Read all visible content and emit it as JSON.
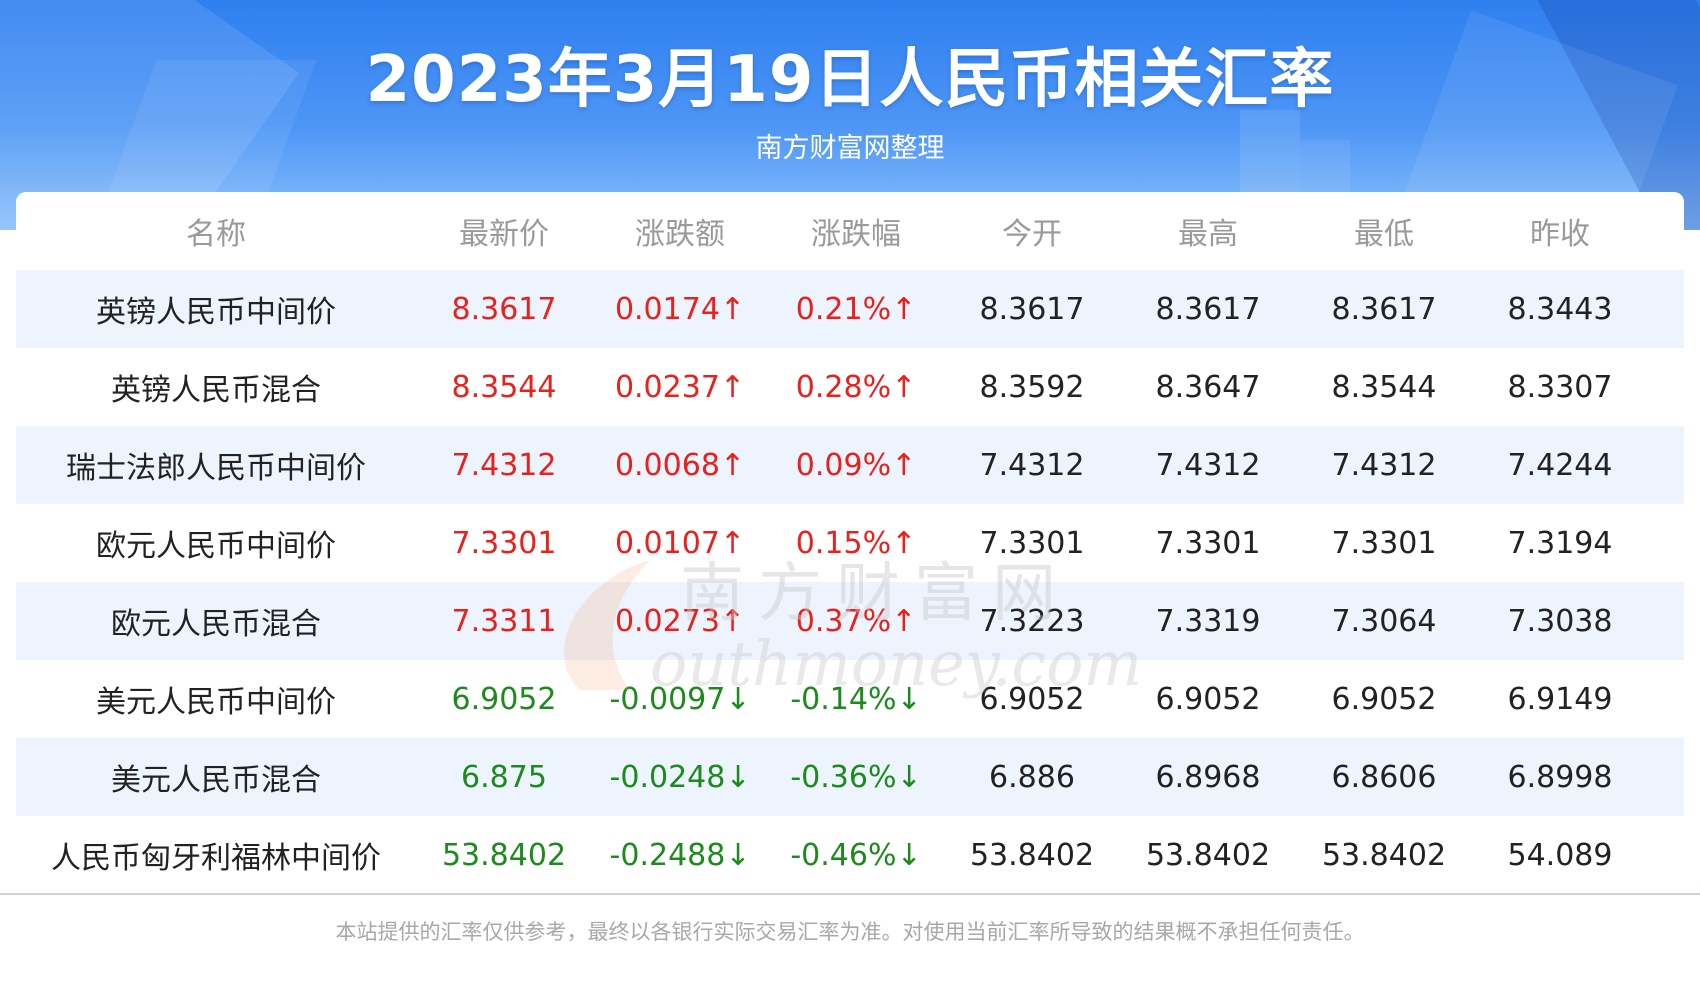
{
  "header": {
    "title": "2023年3月19日人民币相关汇率",
    "subtitle": "南方财富网整理"
  },
  "table": {
    "columns": [
      "名称",
      "最新价",
      "涨跌额",
      "涨跌幅",
      "今开",
      "最高",
      "最低",
      "昨收"
    ],
    "rows": [
      {
        "name": "英镑人民币中间价",
        "latest": "8.3617",
        "change": "0.0174↑",
        "change_pct": "0.21%↑",
        "open": "8.3617",
        "high": "8.3617",
        "low": "8.3617",
        "prev_close": "8.3443",
        "trend": "up"
      },
      {
        "name": "英镑人民币混合",
        "latest": "8.3544",
        "change": "0.0237↑",
        "change_pct": "0.28%↑",
        "open": "8.3592",
        "high": "8.3647",
        "low": "8.3544",
        "prev_close": "8.3307",
        "trend": "up"
      },
      {
        "name": "瑞士法郎人民币中间价",
        "latest": "7.4312",
        "change": "0.0068↑",
        "change_pct": "0.09%↑",
        "open": "7.4312",
        "high": "7.4312",
        "low": "7.4312",
        "prev_close": "7.4244",
        "trend": "up"
      },
      {
        "name": "欧元人民币中间价",
        "latest": "7.3301",
        "change": "0.0107↑",
        "change_pct": "0.15%↑",
        "open": "7.3301",
        "high": "7.3301",
        "low": "7.3301",
        "prev_close": "7.3194",
        "trend": "up"
      },
      {
        "name": "欧元人民币混合",
        "latest": "7.3311",
        "change": "0.0273↑",
        "change_pct": "0.37%↑",
        "open": "7.3223",
        "high": "7.3319",
        "low": "7.3064",
        "prev_close": "7.3038",
        "trend": "up"
      },
      {
        "name": "美元人民币中间价",
        "latest": "6.9052",
        "change": "-0.0097↓",
        "change_pct": "-0.14%↓",
        "open": "6.9052",
        "high": "6.9052",
        "low": "6.9052",
        "prev_close": "6.9149",
        "trend": "down"
      },
      {
        "name": "美元人民币混合",
        "latest": "6.875",
        "change": "-0.0248↓",
        "change_pct": "-0.36%↓",
        "open": "6.886",
        "high": "6.8968",
        "low": "6.8606",
        "prev_close": "6.8998",
        "trend": "down"
      },
      {
        "name": "人民币匈牙利福林中间价",
        "latest": "53.8402",
        "change": "-0.2488↓",
        "change_pct": "-0.46%↓",
        "open": "53.8402",
        "high": "53.8402",
        "low": "53.8402",
        "prev_close": "54.089",
        "trend": "down"
      }
    ]
  },
  "watermark": {
    "line1": "南方财富网",
    "line2": "southmoney.com"
  },
  "footer": {
    "disclaimer": "本站提供的汇率仅供参考，最终以各银行实际交易汇率为准。对使用当前汇率所导致的结果概不承担任何责任。"
  },
  "colors": {
    "up": "#e8211c",
    "down": "#1d8a1d",
    "banner": "#3a88f3",
    "stripe": "#eef4fd"
  }
}
